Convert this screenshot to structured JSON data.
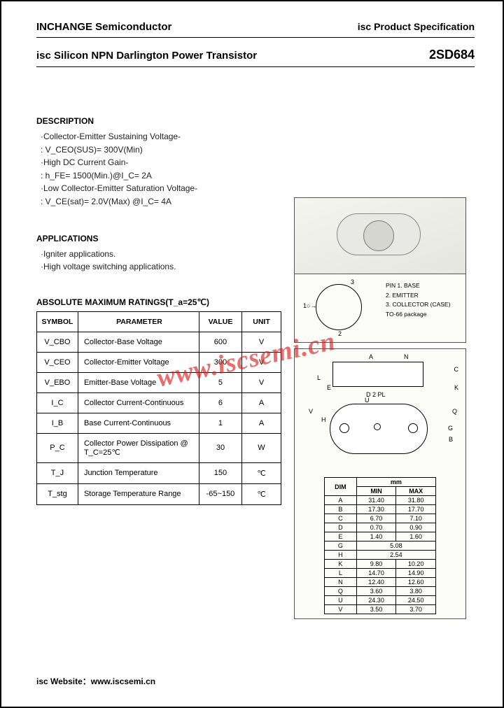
{
  "header": {
    "company": "INCHANGE Semiconductor",
    "spec": "isc Product Specification"
  },
  "title": {
    "text": "isc Silicon NPN Darlington Power Transistor",
    "part": "2SD684"
  },
  "description": {
    "heading": "DESCRIPTION",
    "lines": [
      "·Collector-Emitter Sustaining Voltage-",
      " : V_CEO(SUS)= 300V(Min)",
      "·High DC Current Gain-",
      " : h_FE= 1500(Min.)@I_C= 2A",
      "·Low Collector-Emitter Saturation Voltage-",
      " : V_CE(sat)= 2.0V(Max) @I_C= 4A"
    ]
  },
  "applications": {
    "heading": "APPLICATIONS",
    "lines": [
      "·Igniter applications.",
      "·High voltage switching applications."
    ]
  },
  "schematic_pins": {
    "heading": "PIN",
    "p1": "1. BASE",
    "p2": "2. EMITTER",
    "p3": "3. COLLECTOR (CASE)",
    "pkg": "TO-66 package"
  },
  "ratings": {
    "heading": "ABSOLUTE MAXIMUM RATINGS(T_a=25℃)",
    "columns": [
      "SYMBOL",
      "PARAMETER",
      "VALUE",
      "UNIT"
    ],
    "rows": [
      {
        "sym": "V_CBO",
        "param": "Collector-Base Voltage",
        "val": "600",
        "unit": "V"
      },
      {
        "sym": "V_CEO",
        "param": "Collector-Emitter Voltage",
        "val": "300",
        "unit": "V"
      },
      {
        "sym": "V_EBO",
        "param": "Emitter-Base Voltage",
        "val": "5",
        "unit": "V"
      },
      {
        "sym": "I_C",
        "param": "Collector Current-Continuous",
        "val": "6",
        "unit": "A"
      },
      {
        "sym": "I_B",
        "param": "Base Current-Continuous",
        "val": "1",
        "unit": "A"
      },
      {
        "sym": "P_C",
        "param": "Collector Power Dissipation @ T_C=25℃",
        "val": "30",
        "unit": "W"
      },
      {
        "sym": "T_J",
        "param": "Junction Temperature",
        "val": "150",
        "unit": "℃"
      },
      {
        "sym": "T_stg",
        "param": "Storage Temperature Range",
        "val": "-65~150",
        "unit": "℃"
      }
    ]
  },
  "dimensions": {
    "unit_label": "mm",
    "columns": [
      "DIM",
      "MIN",
      "MAX"
    ],
    "rows": [
      [
        "A",
        "31.40",
        "31.80"
      ],
      [
        "B",
        "17.30",
        "17.70"
      ],
      [
        "C",
        "6.70",
        "7.10"
      ],
      [
        "D",
        "0.70",
        "0.90"
      ],
      [
        "E",
        "1.40",
        "1.60"
      ],
      [
        "G",
        "",
        "5.08"
      ],
      [
        "H",
        "",
        "2.54"
      ],
      [
        "K",
        "9.80",
        "10.20"
      ],
      [
        "L",
        "14.70",
        "14.90"
      ],
      [
        "N",
        "12.40",
        "12.60"
      ],
      [
        "Q",
        "3.60",
        "3.80"
      ],
      [
        "U",
        "24.30",
        "24.50"
      ],
      [
        "V",
        "3.50",
        "3.70"
      ]
    ]
  },
  "dim_labels": {
    "A": "A",
    "N": "N",
    "C": "C",
    "L": "L",
    "E": "E",
    "D": "D 2 PL",
    "K": "K",
    "U": "U",
    "V": "V",
    "H": "H",
    "G": "G",
    "B": "B",
    "Q": "Q"
  },
  "watermark": "www.iscsemi.cn",
  "footer": "isc Website：www.iscsemi.cn",
  "colors": {
    "text": "#000000",
    "border": "#000000",
    "watermark": "rgba(220,30,30,0.65)",
    "bg_panel": "#fbfbf7"
  }
}
